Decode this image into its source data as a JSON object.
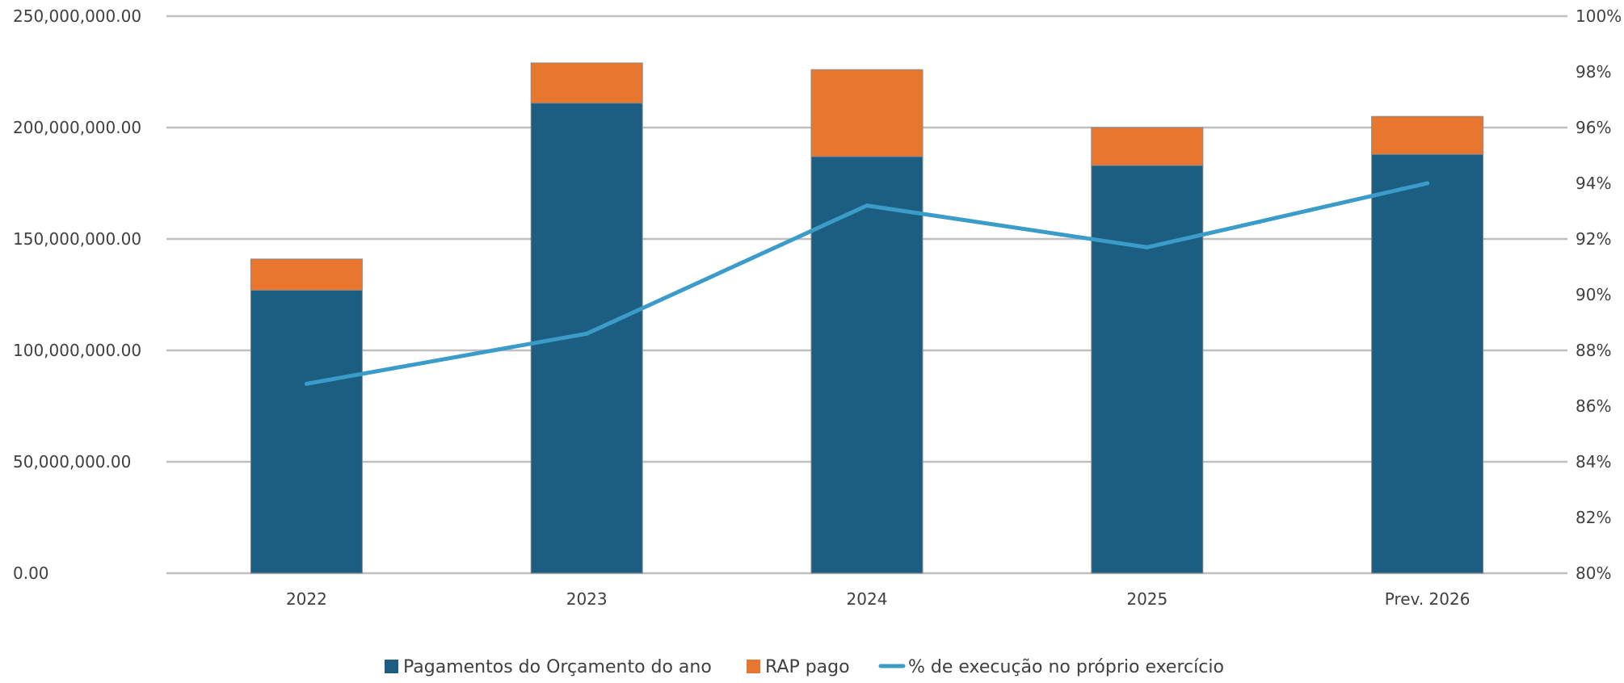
{
  "chart_data": {
    "type": "bar",
    "stacked": true,
    "categories": [
      "2022",
      "2023",
      "2024",
      "2025",
      "Prev. 2026"
    ],
    "series": [
      {
        "name": "Pagamentos do Orçamento do ano",
        "type": "bar",
        "axis": "left",
        "color": "#1b5e82",
        "values": [
          127000000,
          211000000,
          187000000,
          183000000,
          188000000
        ]
      },
      {
        "name": "RAP pago",
        "type": "bar",
        "axis": "left",
        "color": "#e8762f",
        "values": [
          14000000,
          18000000,
          39000000,
          17000000,
          17000000
        ]
      },
      {
        "name": "% de execução no próprio exercício",
        "type": "line",
        "axis": "right",
        "color": "#3b9cc9",
        "values": [
          86.8,
          88.6,
          93.2,
          91.7,
          94.0
        ]
      }
    ],
    "y_left": {
      "min": 0,
      "max": 250000000,
      "ticks": [
        "0.00",
        "50,000,000.00",
        "100,000,000.00",
        "150,000,000.00",
        "200,000,000.00",
        "250,000,000.00"
      ]
    },
    "y_right": {
      "min": 80,
      "max": 100,
      "ticks": [
        "80%",
        "82%",
        "84%",
        "86%",
        "88%",
        "90%",
        "92%",
        "94%",
        "96%",
        "98%",
        "100%"
      ]
    },
    "grid": true,
    "legend_position": "bottom-center",
    "colors": {
      "grid": "#bfbfbf",
      "axis_text": "#404040"
    }
  }
}
